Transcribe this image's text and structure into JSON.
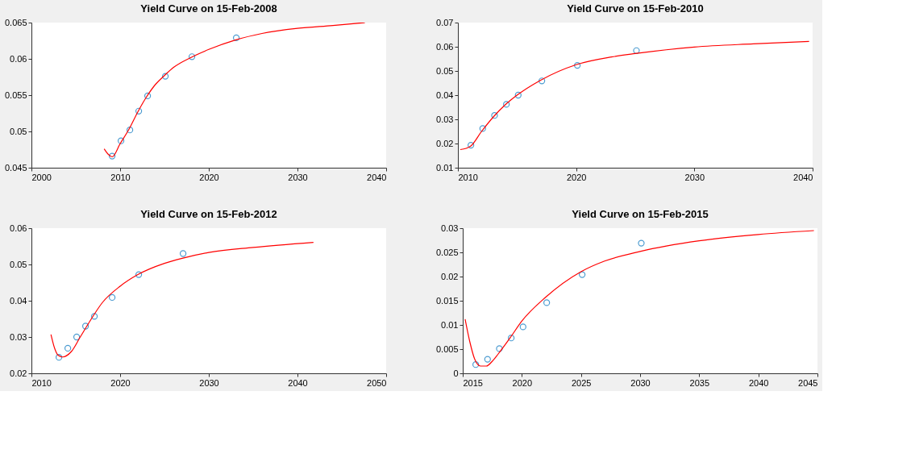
{
  "chart_data": [
    {
      "type": "scatter",
      "title": "Yield Curve on 15-Feb-2008",
      "xlim": [
        2000,
        2040
      ],
      "xticks": [
        2000,
        2010,
        2020,
        2030,
        2040
      ],
      "ylim": [
        0.045,
        0.065
      ],
      "yticks": [
        0.045,
        0.05,
        0.055,
        0.06,
        0.065
      ],
      "series": [
        {
          "marker": "circle",
          "color": "#0072bd",
          "x": [
            2009.1,
            2010.1,
            2011.1,
            2012.1,
            2013.1,
            2015.1,
            2018.1,
            2023.1
          ],
          "values": [
            0.0466,
            0.0487,
            0.0502,
            0.0528,
            0.0549,
            0.0576,
            0.0603,
            0.0629
          ]
        },
        {
          "type": "line",
          "marker": "none",
          "color": "#ff0000",
          "x": [
            2008.2,
            2008.7,
            2009.1,
            2010,
            2011,
            2012,
            2013,
            2014,
            2015,
            2016,
            2018,
            2020,
            2023,
            2026,
            2030,
            2034,
            2037.6
          ],
          "values": [
            0.0476,
            0.0468,
            0.0465,
            0.0483,
            0.0503,
            0.0527,
            0.0548,
            0.0565,
            0.0577,
            0.0588,
            0.0602,
            0.0613,
            0.0626,
            0.0635,
            0.0642,
            0.0646,
            0.065
          ]
        }
      ]
    },
    {
      "type": "scatter",
      "title": "Yield Curve on 15-Feb-2010",
      "xlim": [
        2010,
        2040
      ],
      "xticks": [
        2010,
        2020,
        2030,
        2040
      ],
      "ylim": [
        0.01,
        0.07
      ],
      "yticks": [
        0.01,
        0.02,
        0.03,
        0.04,
        0.05,
        0.06,
        0.07
      ],
      "series": [
        {
          "marker": "circle",
          "color": "#0072bd",
          "x": [
            2011.1,
            2012.1,
            2013.1,
            2014.1,
            2015.1,
            2017.1,
            2020.1,
            2025.1
          ],
          "values": [
            0.0193,
            0.0262,
            0.0316,
            0.0362,
            0.04,
            0.0459,
            0.0523,
            0.0584
          ]
        },
        {
          "type": "line",
          "marker": "none",
          "color": "#ff0000",
          "x": [
            2010.2,
            2010.7,
            2011.1,
            2012,
            2013,
            2014,
            2015,
            2017,
            2020,
            2023,
            2025,
            2030,
            2035,
            2039.7
          ],
          "values": [
            0.0175,
            0.018,
            0.019,
            0.025,
            0.031,
            0.036,
            0.04,
            0.0462,
            0.0526,
            0.0558,
            0.0572,
            0.0599,
            0.0612,
            0.0622
          ]
        }
      ]
    },
    {
      "type": "scatter",
      "title": "Yield Curve on 15-Feb-2012",
      "xlim": [
        2010,
        2050
      ],
      "xticks": [
        2010,
        2020,
        2030,
        2040,
        2050
      ],
      "ylim": [
        0.02,
        0.06
      ],
      "yticks": [
        0.02,
        0.03,
        0.04,
        0.05,
        0.06
      ],
      "series": [
        {
          "marker": "circle",
          "color": "#0072bd",
          "x": [
            2013.1,
            2014.1,
            2015.1,
            2016.1,
            2017.1,
            2019.1,
            2022.1,
            2027.1
          ],
          "values": [
            0.0244,
            0.0269,
            0.03,
            0.033,
            0.0357,
            0.0409,
            0.0472,
            0.053
          ]
        },
        {
          "type": "line",
          "marker": "none",
          "color": "#ff0000",
          "x": [
            2012.2,
            2012.6,
            2013,
            2013.5,
            2014.5,
            2015.5,
            2016.5,
            2018,
            2020,
            2022,
            2025,
            2027,
            2030,
            2035,
            2041.8
          ],
          "values": [
            0.0307,
            0.027,
            0.025,
            0.0245,
            0.026,
            0.03,
            0.034,
            0.0395,
            0.044,
            0.0472,
            0.0503,
            0.0517,
            0.0533,
            0.0547,
            0.0561
          ]
        }
      ]
    },
    {
      "type": "scatter",
      "title": "Yield Curve on 15-Feb-2015",
      "xlim": [
        2015,
        2045
      ],
      "xticks": [
        2015,
        2020,
        2025,
        2030,
        2035,
        2040,
        2045
      ],
      "ylim": [
        0,
        0.03
      ],
      "yticks": [
        0,
        0.005,
        0.01,
        0.015,
        0.02,
        0.025,
        0.03
      ],
      "series": [
        {
          "marker": "circle",
          "color": "#0072bd",
          "x": [
            2016.1,
            2017.1,
            2018.1,
            2019.1,
            2020.1,
            2022.1,
            2025.1,
            2030.1
          ],
          "values": [
            0.0018,
            0.0029,
            0.0051,
            0.0073,
            0.0096,
            0.0146,
            0.0204,
            0.0269
          ]
        },
        {
          "type": "line",
          "marker": "none",
          "color": "#ff0000",
          "x": [
            2015.2,
            2015.6,
            2016,
            2016.5,
            2017,
            2017.5,
            2018,
            2019,
            2020,
            2022,
            2025,
            2027,
            2030,
            2035,
            2040,
            2044.7
          ],
          "values": [
            0.0112,
            0.0065,
            0.003,
            0.0015,
            0.0015,
            0.0025,
            0.004,
            0.0073,
            0.0108,
            0.0157,
            0.021,
            0.0232,
            0.0252,
            0.0274,
            0.0287,
            0.0295
          ]
        }
      ]
    }
  ]
}
